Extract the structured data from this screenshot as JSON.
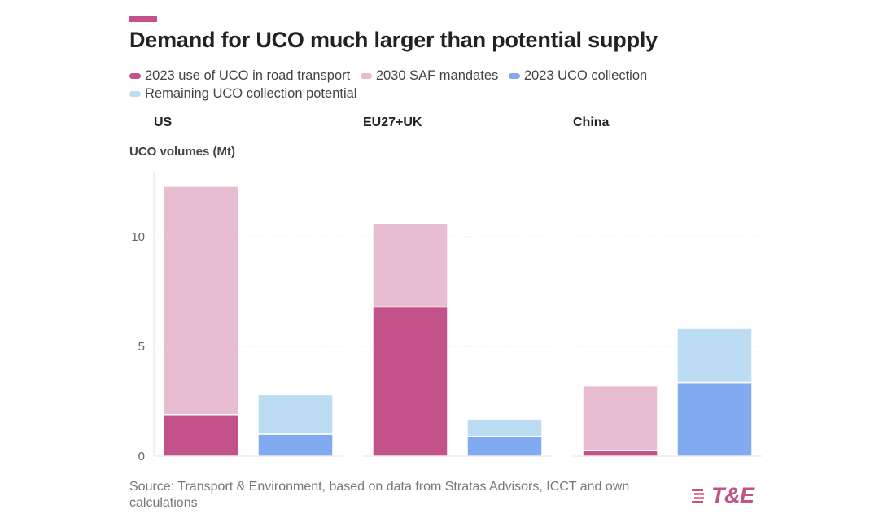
{
  "header": {
    "title": "Demand for UCO much larger than potential supply"
  },
  "colors": {
    "accent": "#c4528a",
    "road_transport": "#c4528a",
    "saf_mandates": "#e8bcd1",
    "uco_collection": "#82aaf0",
    "remaining_potential": "#bcdcf4"
  },
  "legend": {
    "items": [
      {
        "label": "2023 use of UCO in road transport",
        "color": "#c4528a"
      },
      {
        "label": "2030 SAF mandates",
        "color": "#e8bcd1"
      },
      {
        "label": "2023 UCO collection",
        "color": "#82aaf0"
      },
      {
        "label": "Remaining UCO collection potential",
        "color": "#bcdcf4"
      }
    ]
  },
  "chart_data": {
    "type": "bar",
    "stacked": true,
    "title": "Demand for UCO much larger than potential supply",
    "ylabel": "UCO volumes (Mt)",
    "xlabel": "",
    "ylim": [
      0,
      13
    ],
    "yticks": [
      0,
      5,
      10
    ],
    "grid": true,
    "panels": [
      {
        "name": "US",
        "bars": [
          {
            "segments": [
              {
                "series": "2023 use of UCO in road transport",
                "value": 1.9
              },
              {
                "series": "2030 SAF mandates",
                "value": 10.4
              }
            ]
          },
          {
            "segments": [
              {
                "series": "2023 UCO collection",
                "value": 1.0
              },
              {
                "series": "Remaining UCO collection potential",
                "value": 1.8
              }
            ]
          }
        ]
      },
      {
        "name": "EU27+UK",
        "bars": [
          {
            "segments": [
              {
                "series": "2023 use of UCO in road transport",
                "value": 6.8
              },
              {
                "series": "2030 SAF mandates",
                "value": 3.8
              }
            ]
          },
          {
            "segments": [
              {
                "series": "2023 UCO collection",
                "value": 0.9
              },
              {
                "series": "Remaining UCO collection potential",
                "value": 0.8
              }
            ]
          }
        ]
      },
      {
        "name": "China",
        "bars": [
          {
            "segments": [
              {
                "series": "2023 use of UCO in road transport",
                "value": 0.25
              },
              {
                "series": "2030 SAF mandates",
                "value": 2.95
              }
            ]
          },
          {
            "segments": [
              {
                "series": "2023 UCO collection",
                "value": 3.35
              },
              {
                "series": "Remaining UCO collection potential",
                "value": 2.5
              }
            ]
          }
        ]
      }
    ]
  },
  "footer": {
    "source": "Source: Transport & Environment, based on data from Stratas Advisors, ICCT and own calculations",
    "logo_text": "T&E"
  }
}
